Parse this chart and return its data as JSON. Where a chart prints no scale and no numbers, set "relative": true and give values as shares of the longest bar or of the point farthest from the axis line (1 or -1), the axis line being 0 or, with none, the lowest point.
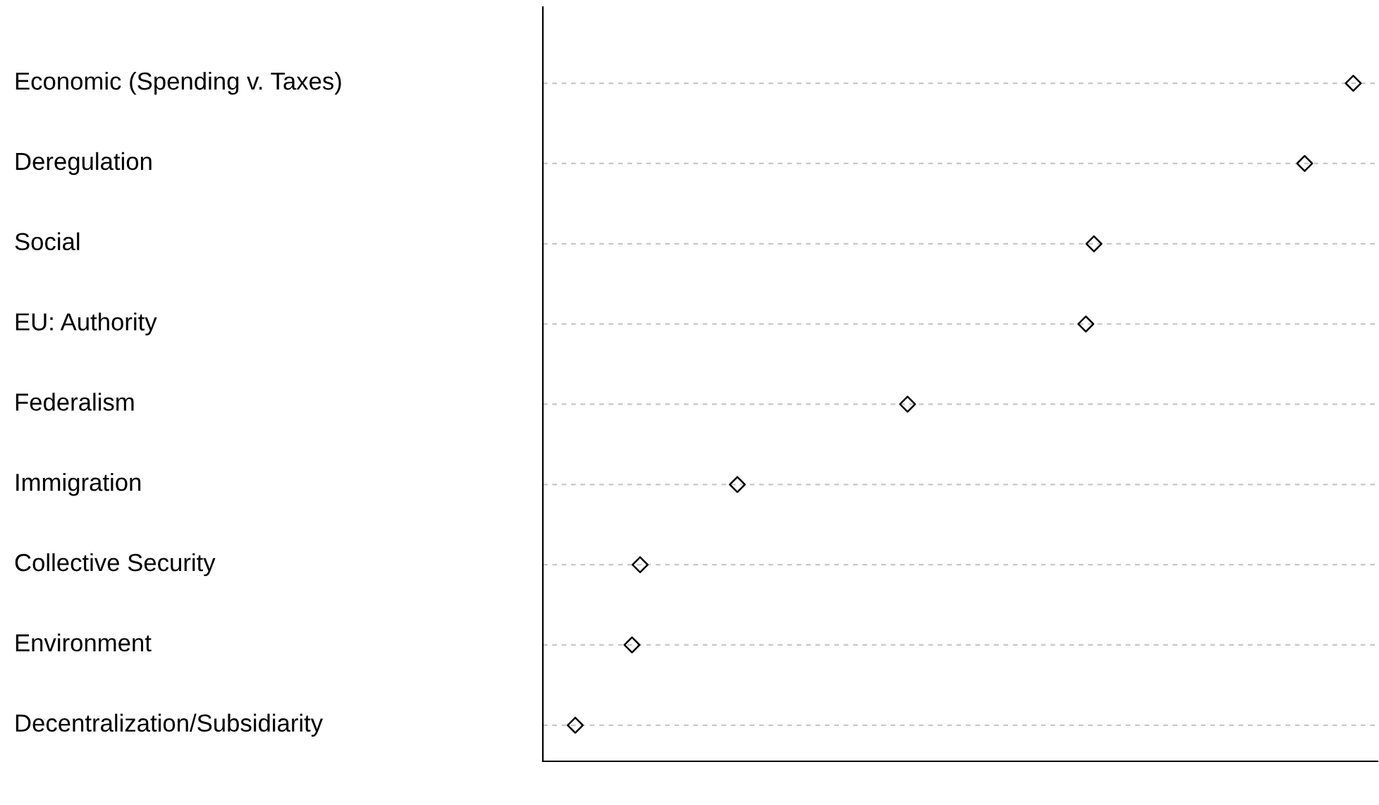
{
  "chart_data": {
    "type": "scatter",
    "orientation": "horizontal",
    "relative": true,
    "marker": "diamond",
    "grid": "y",
    "categories": [
      "Economic (Spending v. Taxes)",
      "Deregulation",
      "Social",
      "EU: Authority",
      "Federalism",
      "Immigration",
      "Collective Security",
      "Environment",
      "Decentralization/Subsidiarity"
    ],
    "series": [
      {
        "color": "#000000",
        "values": [
          1,
          0.94,
          0.68,
          0.67,
          0.45,
          0.24,
          0.12,
          0.11,
          0.04
        ]
      }
    ]
  }
}
